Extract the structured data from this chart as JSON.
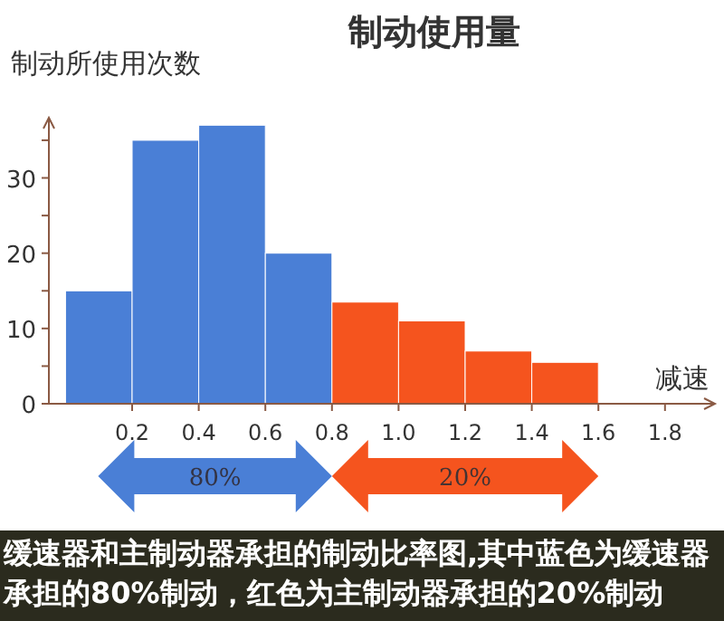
{
  "chart_data": {
    "type": "histogram",
    "title": "制动使用量",
    "ylabel": "制动所使用次数",
    "xlabel": "减速",
    "bins": [
      0,
      0.2,
      0.4,
      0.6,
      0.8,
      1.0,
      1.2,
      1.4,
      1.6
    ],
    "values": [
      15,
      35,
      37,
      20,
      13.5,
      11,
      7,
      5.5
    ],
    "colors": [
      "#4a7fd6",
      "#4a7fd6",
      "#4a7fd6",
      "#4a7fd6",
      "#f5541e",
      "#f5541e",
      "#f5541e",
      "#f5541e"
    ],
    "xlim": [
      -0.05,
      1.95
    ],
    "ylim": [
      0,
      38
    ],
    "xticks": [
      0.2,
      0.4,
      0.6,
      0.8,
      {
        "value": 1.0,
        "label": "1.0"
      },
      1.2,
      1.4,
      1.6,
      1.8
    ],
    "yticks": [
      0,
      {
        "value": 5,
        "label": null
      },
      10,
      {
        "value": 15,
        "label": null
      },
      20,
      {
        "value": 25,
        "label": null
      },
      30,
      {
        "value": 35,
        "label": null
      }
    ],
    "grid": false,
    "annotations": [
      "80%",
      "20%",
      "缓速器和主制动器承担的制动比率图,其中蓝色为缓速器承担的80%制动，红色为主制动器承担的20%制动"
    ]
  }
}
